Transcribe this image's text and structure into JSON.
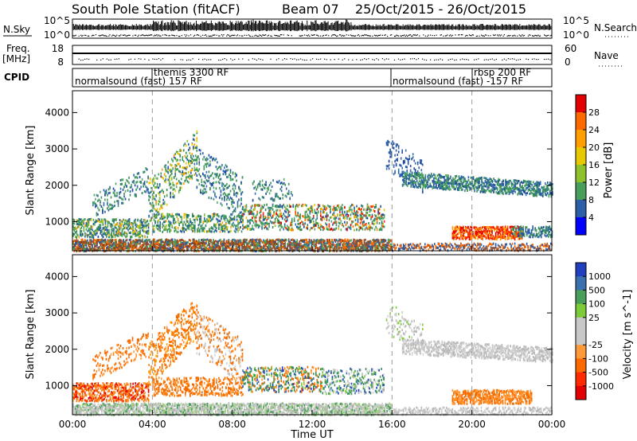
{
  "header": {
    "station": "South Pole Station (fitACF)",
    "beam": "Beam 07",
    "dates": "25/Oct/2015 - 26/Oct/2015"
  },
  "top_panels": {
    "nsky_label": "N.Sky",
    "nsky_ticks": [
      "10^5",
      "10^0"
    ],
    "nsearch_label": "N.Search",
    "nsearch_ticks": [
      "10^5",
      "10^0"
    ],
    "freq_label": "Freq.",
    "freq_unit": "[MHz]",
    "freq_ticks": [
      "18",
      "8"
    ],
    "nave_label": "Nave",
    "nave_ticks": [
      "60",
      "0"
    ],
    "cpid_label": "CPID",
    "cpid_segments": [
      {
        "label": "normalsound (fast) 157 RF"
      },
      {
        "label": "themis 3300 RF"
      },
      {
        "label": "normalsound (fast) -157 RF"
      },
      {
        "label": "rbsp 200 RF"
      }
    ]
  },
  "chart_data": [
    {
      "type": "heatmap",
      "title": "",
      "ylabel": "Slant Range [km]",
      "ylim": [
        200,
        4600
      ],
      "y_ticks": [
        1000,
        2000,
        3000,
        4000
      ],
      "colorbar": {
        "label": "Power [dB]",
        "ticks": [
          "28",
          "24",
          "20",
          "16",
          "12",
          "8",
          "4"
        ],
        "colors": [
          "#e30000",
          "#ff6a00",
          "#ffa000",
          "#e8c800",
          "#8ec22d",
          "#4a9e5b",
          "#2c5fa8",
          "#0000ff"
        ]
      },
      "regions": [
        {
          "t": [
            0.0,
            16.0
          ],
          "r": [
            200,
            550
          ],
          "level": "8-16 (noise band)"
        },
        {
          "t": [
            0.0,
            3.8
          ],
          "r": [
            550,
            1300
          ],
          "level": "8-16"
        },
        {
          "t": [
            3.8,
            8.5
          ],
          "r": [
            700,
            3400
          ],
          "level": "4-16"
        },
        {
          "t": [
            8.5,
            15.6
          ],
          "r": [
            700,
            1700
          ],
          "level": "8-20"
        },
        {
          "t": [
            15.7,
            23.9
          ],
          "r": [
            1500,
            2600
          ],
          "level": "4-12"
        },
        {
          "t": [
            19.0,
            22.5
          ],
          "r": [
            500,
            1000
          ],
          "level": "20-28"
        }
      ]
    },
    {
      "type": "heatmap",
      "title": "",
      "ylabel": "Slant Range [km]",
      "xlabel": "Time UT",
      "ylim": [
        200,
        4600
      ],
      "y_ticks": [
        1000,
        2000,
        3000,
        4000
      ],
      "x_ticks": [
        "00:00",
        "04:00",
        "08:00",
        "12:00",
        "16:00",
        "20:00",
        "00:00"
      ],
      "colorbar": {
        "label": "Velocity [m s^-1]",
        "ticks": [
          "1000",
          "500",
          "100",
          "25",
          "-25",
          "-100",
          "-500",
          "-1000"
        ],
        "colors": [
          "#2040c0",
          "#3a6fb0",
          "#4a9e5b",
          "#7ccc3a",
          "#c8c8c8",
          "#c8c8c8",
          "#ff9a3a",
          "#ff6a00",
          "#ff2a00",
          "#e30000"
        ]
      },
      "regions": [
        {
          "t": [
            0.0,
            16.0
          ],
          "r": [
            200,
            550
          ],
          "velocity": "-25 to 25 (ground scatter)"
        },
        {
          "t": [
            0.0,
            8.5
          ],
          "r": [
            600,
            3400
          ],
          "velocity": "-100 to -500"
        },
        {
          "t": [
            8.5,
            16.0
          ],
          "r": [
            600,
            1700
          ],
          "velocity": "100 to 500"
        },
        {
          "t": [
            16.0,
            24.0
          ],
          "r": [
            1500,
            2600
          ],
          "velocity": "-25 to 25"
        },
        {
          "t": [
            19.0,
            23.0
          ],
          "r": [
            500,
            1000
          ],
          "velocity": "-100 to -500"
        }
      ]
    }
  ]
}
